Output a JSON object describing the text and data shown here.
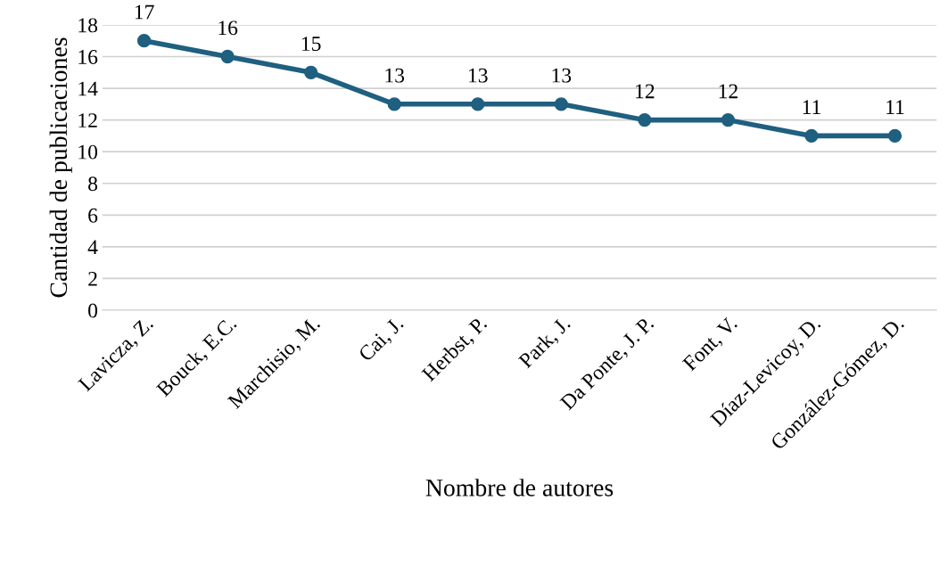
{
  "chart_data": {
    "type": "line",
    "xlabel": "Nombre de autores",
    "ylabel": "Cantidad de publicaciones",
    "categories": [
      "Lavicza, Z.",
      "Bouck, E.C.",
      "Marchisio, M.",
      "Cai, J.",
      "Herbst, P.",
      "Park, J.",
      "Da Ponte, J. P.",
      "Font, V.",
      "Díaz-Levicoy, D.",
      "González-Gómez, D."
    ],
    "series": [
      {
        "color": "#1f5f80",
        "values": [
          17,
          16,
          15,
          13,
          13,
          13,
          12,
          12,
          11,
          11
        ]
      }
    ],
    "ylim": [
      0,
      18
    ],
    "yticks": [
      0,
      2,
      4,
      6,
      8,
      10,
      12,
      14,
      16,
      18
    ],
    "grid": "y",
    "marker": "circle",
    "line_style": "solid",
    "data_labels": true,
    "legend": false
  }
}
